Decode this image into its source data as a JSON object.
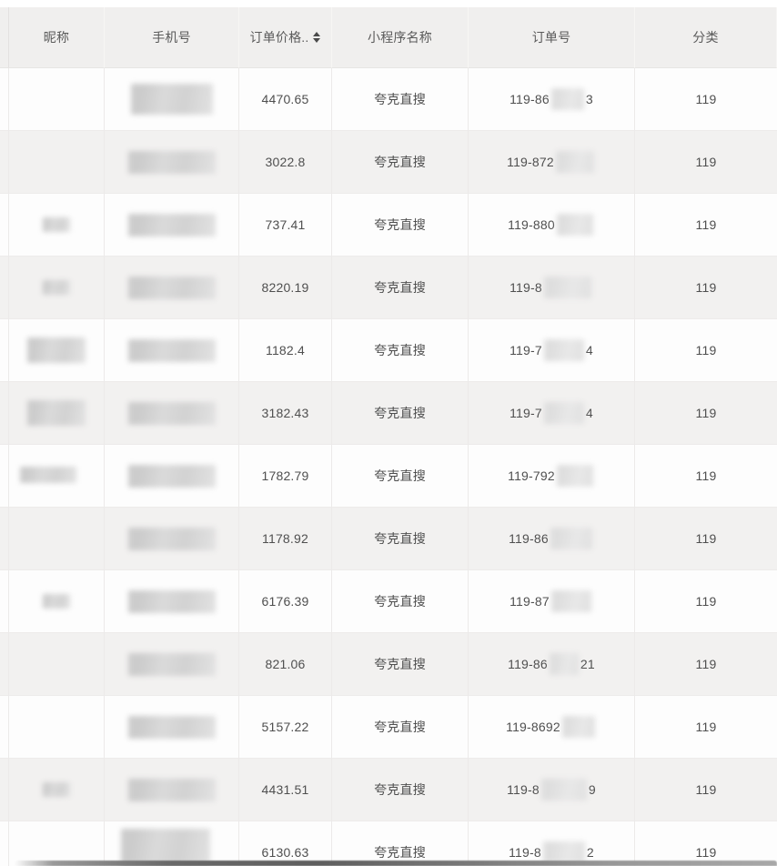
{
  "table": {
    "columns": [
      {
        "key": "nickname",
        "label": "昵称",
        "sortable": false
      },
      {
        "key": "phone",
        "label": "手机号",
        "sortable": false
      },
      {
        "key": "price",
        "label": "订单价格..",
        "sortable": true
      },
      {
        "key": "miniapp",
        "label": "小程序名称",
        "sortable": false
      },
      {
        "key": "order",
        "label": "订单号",
        "sortable": false
      },
      {
        "key": "category",
        "label": "分类",
        "sortable": false
      }
    ],
    "rows": [
      {
        "nickname_redaction": "none",
        "phone_redaction": "tall",
        "price": "4470.65",
        "miniapp": "夸克直搜",
        "order_prefix": "119-86",
        "order_suffix": "3",
        "order_redaction_width": 36,
        "category": "119"
      },
      {
        "nickname_redaction": "none",
        "phone_redaction": "normal",
        "price": "3022.8",
        "miniapp": "夸克直搜",
        "order_prefix": "119-872",
        "order_suffix": "",
        "order_redaction_width": 42,
        "category": "119"
      },
      {
        "nickname_redaction": "small",
        "phone_redaction": "normal",
        "price": "737.41",
        "miniapp": "夸克直搜",
        "order_prefix": "119-880",
        "order_suffix": "",
        "order_redaction_width": 40,
        "category": "119"
      },
      {
        "nickname_redaction": "small",
        "phone_redaction": "normal",
        "price": "8220.19",
        "miniapp": "夸克直搜",
        "order_prefix": "119-8",
        "order_suffix": "",
        "order_redaction_width": 52,
        "category": "119"
      },
      {
        "nickname_redaction": "wide",
        "phone_redaction": "normal",
        "price": "1182.4",
        "miniapp": "夸克直搜",
        "order_prefix": "119-7",
        "order_suffix": "4",
        "order_redaction_width": 44,
        "category": "119"
      },
      {
        "nickname_redaction": "wide",
        "phone_redaction": "normal",
        "price": "3182.43",
        "miniapp": "夸克直搜",
        "order_prefix": "119-7",
        "order_suffix": "4",
        "order_redaction_width": 44,
        "category": "119"
      },
      {
        "nickname_redaction": "wide-left",
        "phone_redaction": "normal",
        "price": "1782.79",
        "miniapp": "夸克直搜",
        "order_prefix": "119-792",
        "order_suffix": "",
        "order_redaction_width": 40,
        "category": "119"
      },
      {
        "nickname_redaction": "none",
        "phone_redaction": "normal",
        "price": "1178.92",
        "miniapp": "夸克直搜",
        "order_prefix": "119-86",
        "order_suffix": "",
        "order_redaction_width": 46,
        "category": "119"
      },
      {
        "nickname_redaction": "small",
        "phone_redaction": "normal",
        "price": "6176.39",
        "miniapp": "夸克直搜",
        "order_prefix": "119-87",
        "order_suffix": "",
        "order_redaction_width": 44,
        "category": "119"
      },
      {
        "nickname_redaction": "none",
        "phone_redaction": "normal",
        "price": "821.06",
        "miniapp": "夸克直搜",
        "order_prefix": "119-86",
        "order_suffix": "21",
        "order_redaction_width": 32,
        "category": "119"
      },
      {
        "nickname_redaction": "none",
        "phone_redaction": "normal",
        "price": "5157.22",
        "miniapp": "夸克直搜",
        "order_prefix": "119-8692",
        "order_suffix": "",
        "order_redaction_width": 36,
        "category": "119"
      },
      {
        "nickname_redaction": "small",
        "phone_redaction": "normal",
        "price": "4431.51",
        "miniapp": "夸克直搜",
        "order_prefix": "119-8",
        "order_suffix": "9",
        "order_redaction_width": 50,
        "category": "119"
      },
      {
        "nickname_redaction": "none",
        "phone_redaction": "tall-cut",
        "price": "6130.63",
        "miniapp": "夸克直搜",
        "order_prefix": "119-8",
        "order_suffix": "2",
        "order_redaction_width": 46,
        "category": "119"
      }
    ]
  },
  "icons": {
    "sorter": "caret-up-down-icon"
  },
  "colors": {
    "header_bg": "#f0efee",
    "stripe_row_bg": "#f2f1f0",
    "plain_row_bg": "#fdfdfd",
    "grid_line": "#eceae9",
    "text": "#4f4f4f",
    "redaction_fill": "#d6d6d6",
    "bottom_bar": "#5f5f5f"
  }
}
